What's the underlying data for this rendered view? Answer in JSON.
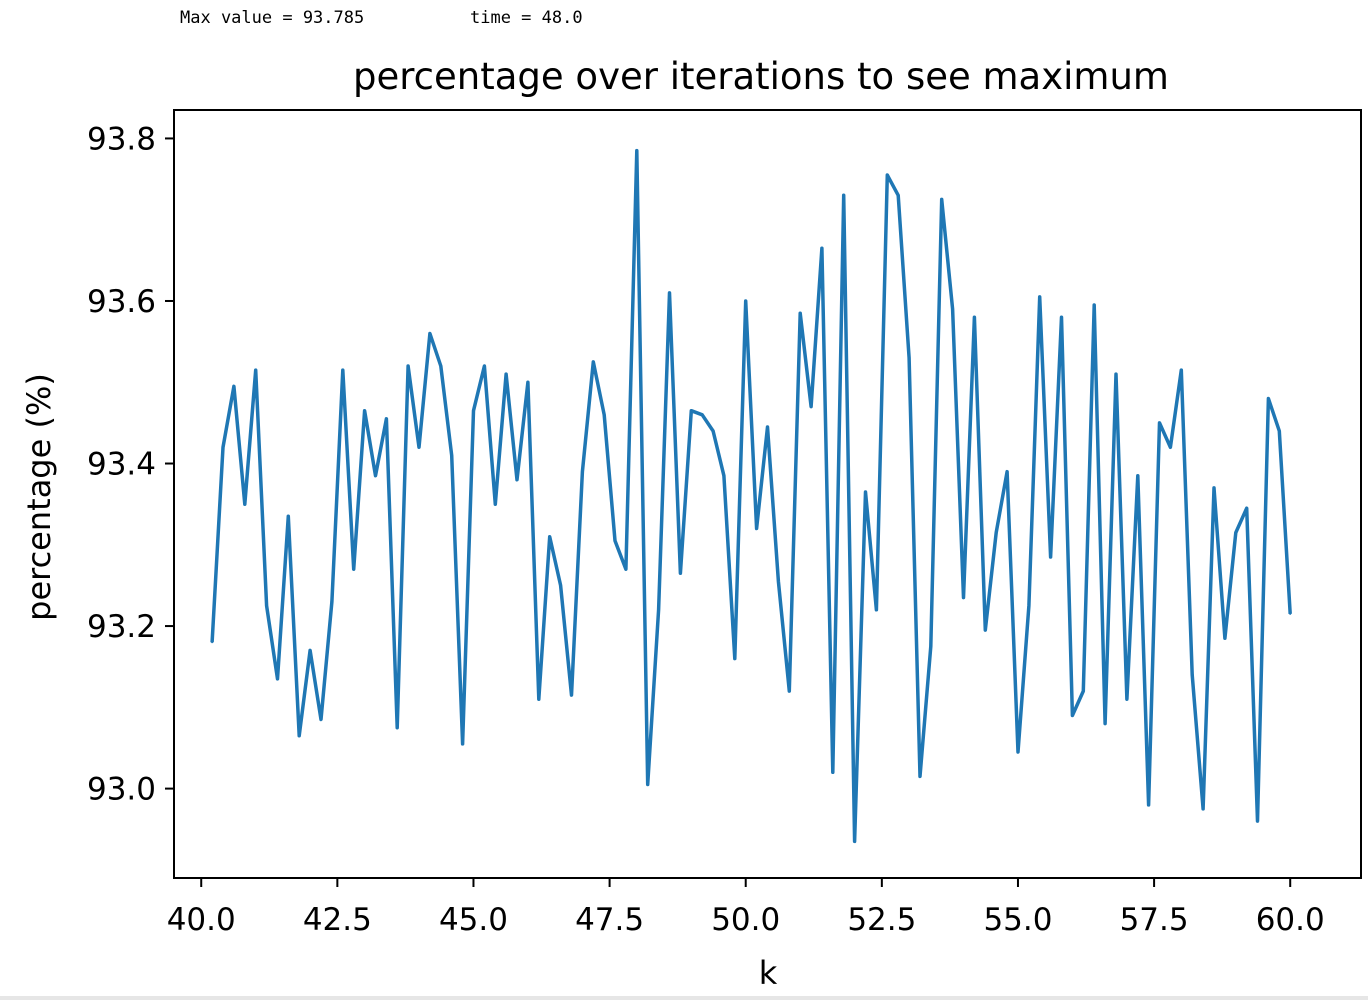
{
  "output": {
    "max_label": "Max value = 93.785",
    "time_label": "time = 48.0"
  },
  "colors": {
    "line": "#1f77b4",
    "axes": "#000000",
    "background": "#ffffff"
  },
  "chart_data": {
    "type": "line",
    "title": "percentage over iterations to see maximum",
    "xlabel": "k",
    "ylabel": "percentage (%)",
    "xlim": [
      39.5,
      61.3
    ],
    "ylim": [
      92.89,
      93.835
    ],
    "xticks": [
      40.0,
      42.5,
      45.0,
      47.5,
      50.0,
      52.5,
      55.0,
      57.5,
      60.0
    ],
    "xtick_labels": [
      "40.0",
      "42.5",
      "45.0",
      "47.5",
      "50.0",
      "52.5",
      "55.0",
      "57.5",
      "60.0"
    ],
    "yticks": [
      93.0,
      93.2,
      93.4,
      93.6,
      93.8
    ],
    "ytick_labels": [
      "93.0",
      "93.2",
      "93.4",
      "93.6",
      "93.8"
    ],
    "grid": false,
    "legend": "none",
    "series": [
      {
        "x": [
          40.2,
          40.4,
          40.6,
          40.8,
          41.0,
          41.2,
          41.4,
          41.6,
          41.8,
          42.0,
          42.2,
          42.4,
          42.6,
          42.8,
          43.0,
          43.2,
          43.4,
          43.6,
          43.8,
          44.0,
          44.2,
          44.4,
          44.6,
          44.8,
          45.0,
          45.2,
          45.4,
          45.6,
          45.8,
          46.0,
          46.2,
          46.4,
          46.6,
          46.8,
          47.0,
          47.2,
          47.4,
          47.6,
          47.8,
          48.0,
          48.2,
          48.4,
          48.6,
          48.8,
          49.0,
          49.2,
          49.4,
          49.6,
          49.8,
          50.0,
          50.2,
          50.4,
          50.6,
          50.8,
          51.0,
          51.2,
          51.4,
          51.6,
          51.8,
          52.0,
          52.2,
          52.4,
          52.6,
          52.8,
          53.0,
          53.2,
          53.4,
          53.6,
          53.8,
          54.0,
          54.2,
          54.4,
          54.6,
          54.8,
          55.0,
          55.2,
          55.4,
          55.6,
          55.8,
          56.0,
          56.2,
          56.4,
          56.6,
          56.8,
          57.0,
          57.2,
          57.4,
          57.6,
          57.8,
          58.0,
          58.2,
          58.4,
          58.6,
          58.8,
          59.0,
          59.2,
          59.4,
          59.6,
          59.8,
          60.0
        ],
        "values": [
          93.18,
          93.42,
          93.495,
          93.35,
          93.515,
          93.225,
          93.135,
          93.335,
          93.065,
          93.17,
          93.085,
          93.23,
          93.515,
          93.27,
          93.465,
          93.385,
          93.455,
          93.075,
          93.52,
          93.42,
          93.56,
          93.52,
          93.41,
          93.055,
          93.465,
          93.52,
          93.35,
          93.51,
          93.38,
          93.5,
          93.11,
          93.31,
          93.25,
          93.115,
          93.39,
          93.525,
          93.46,
          93.305,
          93.27,
          93.785,
          93.005,
          93.22,
          93.61,
          93.265,
          93.465,
          93.46,
          93.44,
          93.385,
          93.16,
          93.6,
          93.32,
          93.445,
          93.255,
          93.12,
          93.585,
          93.47,
          93.665,
          93.02,
          93.73,
          92.935,
          93.365,
          93.22,
          93.755,
          93.73,
          93.53,
          93.015,
          93.175,
          93.725,
          93.59,
          93.235,
          93.58,
          93.195,
          93.315,
          93.39,
          93.045,
          93.225,
          93.605,
          93.285,
          93.58,
          93.09,
          93.12,
          93.595,
          93.08,
          93.51,
          93.11,
          93.385,
          92.98,
          93.45,
          93.42,
          93.515,
          93.14,
          92.975,
          93.37,
          93.185,
          93.315,
          93.345,
          92.96,
          93.48,
          93.44,
          93.215
        ]
      }
    ]
  }
}
